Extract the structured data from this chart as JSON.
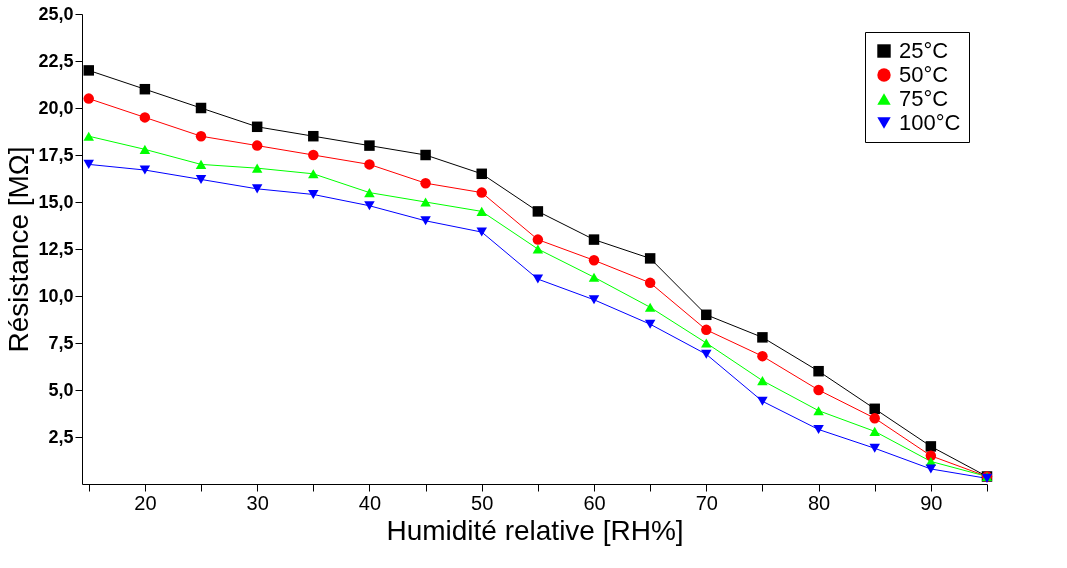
{
  "chart_data": {
    "type": "line",
    "xlabel": "Humidité relative  [RH%]",
    "ylabel": "Résistance [MΩ]",
    "x": [
      15,
      20,
      25,
      30,
      35,
      40,
      45,
      50,
      55,
      60,
      65,
      70,
      75,
      80,
      85,
      90,
      95
    ],
    "series": [
      {
        "name": "25°C",
        "color": "#000000",
        "marker": "square",
        "values": [
          22,
          21,
          20,
          19,
          18.5,
          18,
          17.5,
          16.5,
          14.5,
          13,
          12,
          9,
          7.8,
          6,
          4,
          2,
          0.4
        ]
      },
      {
        "name": "50°C",
        "color": "#ff0000",
        "marker": "circle",
        "values": [
          20.5,
          19.5,
          18.5,
          18,
          17.5,
          17,
          16,
          15.5,
          13,
          11.9,
          10.7,
          8.2,
          6.8,
          5,
          3.5,
          1.5,
          0.4
        ]
      },
      {
        "name": "75°C",
        "color": "#00ff00",
        "marker": "triangle",
        "values": [
          18.5,
          17.8,
          17,
          16.8,
          16.5,
          15.5,
          15,
          14.5,
          12.5,
          11,
          9.4,
          7.5,
          5.5,
          3.9,
          2.8,
          1.2,
          0.4
        ]
      },
      {
        "name": "100°C",
        "color": "#0000ff",
        "marker": "triangle-down",
        "values": [
          17,
          16.7,
          16.2,
          15.7,
          15.4,
          14.8,
          14,
          13.4,
          10.9,
          9.8,
          8.5,
          6.9,
          4.4,
          2.9,
          1.9,
          0.8,
          0.3
        ]
      }
    ],
    "xlim": [
      14.4,
      95
    ],
    "xticks": [
      {
        "value": 15,
        "label": null
      },
      20,
      {
        "value": 25,
        "label": null
      },
      30,
      {
        "value": 35,
        "label": null
      },
      40,
      {
        "value": 45,
        "label": null
      },
      50,
      {
        "value": 55,
        "label": null
      },
      60,
      {
        "value": 65,
        "label": null
      },
      70,
      {
        "value": 75,
        "label": null
      },
      80,
      {
        "value": 85,
        "label": null
      },
      90,
      {
        "value": 95,
        "label": null
      }
    ],
    "ylim": [
      0,
      25
    ],
    "yticks": [
      {
        "value": 2.5,
        "label": "2,5"
      },
      {
        "value": 5,
        "label": "5,0"
      },
      {
        "value": 7.5,
        "label": "7,5"
      },
      {
        "value": 10,
        "label": "10,0"
      },
      {
        "value": 12.5,
        "label": "12,5"
      },
      {
        "value": 15,
        "label": "15,0"
      },
      {
        "value": 17.5,
        "label": "17,5"
      },
      {
        "value": 20,
        "label": "20,0"
      },
      {
        "value": 22.5,
        "label": "22,5"
      },
      {
        "value": 25,
        "label": "25,0"
      }
    ],
    "legend": "top right",
    "grid": false,
    "line_style": "solid"
  }
}
